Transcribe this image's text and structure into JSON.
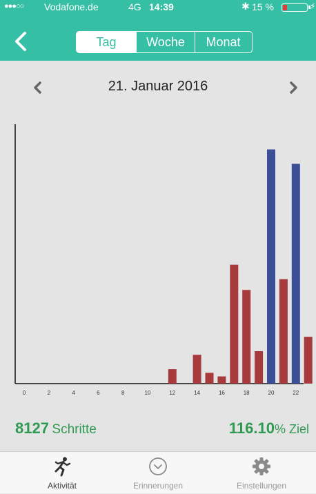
{
  "status_bar": {
    "signal": "●●●○○",
    "carrier": "Vodafone.de",
    "network": "4G",
    "time": "14:39",
    "bluetooth": "✱",
    "battery": "15 %",
    "charging": "⚡"
  },
  "header": {
    "back_icon": "chevron-left-icon",
    "tabs": [
      {
        "label": "Tag",
        "active": true
      },
      {
        "label": "Woche",
        "active": false
      },
      {
        "label": "Monat",
        "active": false
      }
    ]
  },
  "date_nav": {
    "label": "21. Januar 2016",
    "prev_icon": "chevron-left-icon",
    "next_icon": "chevron-right-icon"
  },
  "chart_data": {
    "type": "bar",
    "x_ticks": [
      "0",
      "2",
      "4",
      "6",
      "8",
      "10",
      "12",
      "14",
      "16",
      "18",
      "20",
      "22"
    ],
    "hours": [
      12,
      14,
      15,
      16,
      17,
      18,
      19,
      20,
      21,
      22,
      23
    ],
    "values": [
      4,
      8,
      3,
      2,
      33,
      26,
      9,
      65,
      29,
      61,
      13
    ],
    "bar_colors": [
      "red",
      "red",
      "red",
      "red",
      "red",
      "red",
      "red",
      "blue",
      "red",
      "blue",
      "red"
    ],
    "colors": {
      "red": "#a73a3c",
      "blue": "#3b4f97",
      "axis": "#111111"
    },
    "ylim": [
      0,
      72
    ]
  },
  "summary": {
    "steps_value": "8127",
    "steps_label": "Schritte",
    "goal_value": "116.10",
    "goal_unit": "% Ziel"
  },
  "tab_bar": [
    {
      "label": "Aktivität",
      "icon": "runner-icon",
      "active": true
    },
    {
      "label": "Erinnerungen",
      "icon": "clock-icon",
      "active": false
    },
    {
      "label": "Einstellungen",
      "icon": "gear-icon",
      "active": false
    }
  ],
  "colors": {
    "header": "#35bfa4",
    "background": "#e4e4e4",
    "accent_green": "#2f9a52"
  }
}
